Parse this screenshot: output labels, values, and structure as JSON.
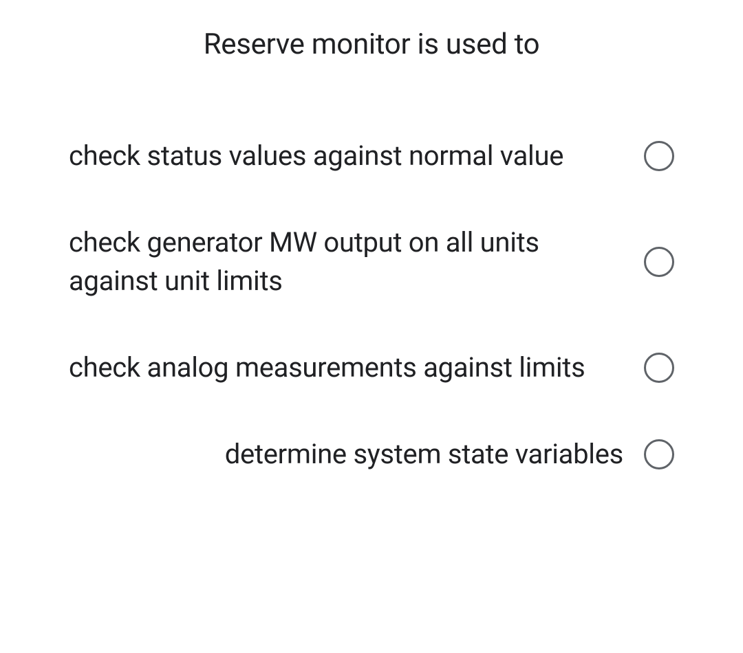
{
  "question": {
    "title": "Reserve monitor is used to",
    "options": [
      {
        "label": "check status values against normal value",
        "selected": false,
        "alignRight": false
      },
      {
        "label": "check generator MW output on all units against unit limits",
        "selected": false,
        "alignRight": false
      },
      {
        "label": "check analog measurements against limits",
        "selected": false,
        "alignRight": false
      },
      {
        "label": "determine system state variables",
        "selected": false,
        "alignRight": true
      }
    ]
  },
  "styling": {
    "text_color": "#202124",
    "radio_border_color": "#5f6368",
    "background_color": "#ffffff",
    "title_fontsize": 42,
    "option_fontsize": 40,
    "radio_size": 44,
    "radio_border_width": 3.5
  }
}
